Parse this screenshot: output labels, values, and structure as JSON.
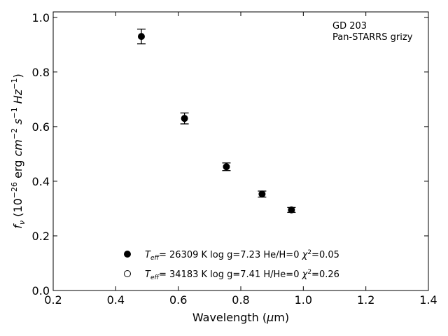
{
  "chart_data": {
    "type": "scatter",
    "xlabel": "Wavelength (μm)",
    "ylabel": "fν (10⁻²⁶ erg cm⁻² s⁻¹ Hz⁻¹)",
    "xlim": [
      0.2,
      1.4
    ],
    "ylim": [
      0.0,
      1.02
    ],
    "xticks": [
      "0.2",
      "0.4",
      "0.6",
      "0.8",
      "1.0",
      "1.2",
      "1.4"
    ],
    "yticks": [
      "0.0",
      "0.2",
      "0.4",
      "0.6",
      "0.8",
      "1.0"
    ],
    "grid": false,
    "annotation": [
      "GD 203",
      "Pan-STARRS grizy"
    ],
    "points": [
      {
        "x": 0.482,
        "y": 0.93,
        "err": 0.027
      },
      {
        "x": 0.62,
        "y": 0.63,
        "err": 0.02
      },
      {
        "x": 0.754,
        "y": 0.453,
        "err": 0.014
      },
      {
        "x": 0.868,
        "y": 0.353,
        "err": 0.011
      },
      {
        "x": 0.962,
        "y": 0.295,
        "err": 0.009
      }
    ],
    "legend": [
      {
        "marker": "filled-circle",
        "teff": "26309",
        "logg": "7.23",
        "comp": "He/H=0",
        "chi2": "0.05"
      },
      {
        "marker": "open-circle",
        "teff": "34183",
        "logg": "7.41",
        "comp": "H/He=0",
        "chi2": "0.26"
      }
    ]
  }
}
